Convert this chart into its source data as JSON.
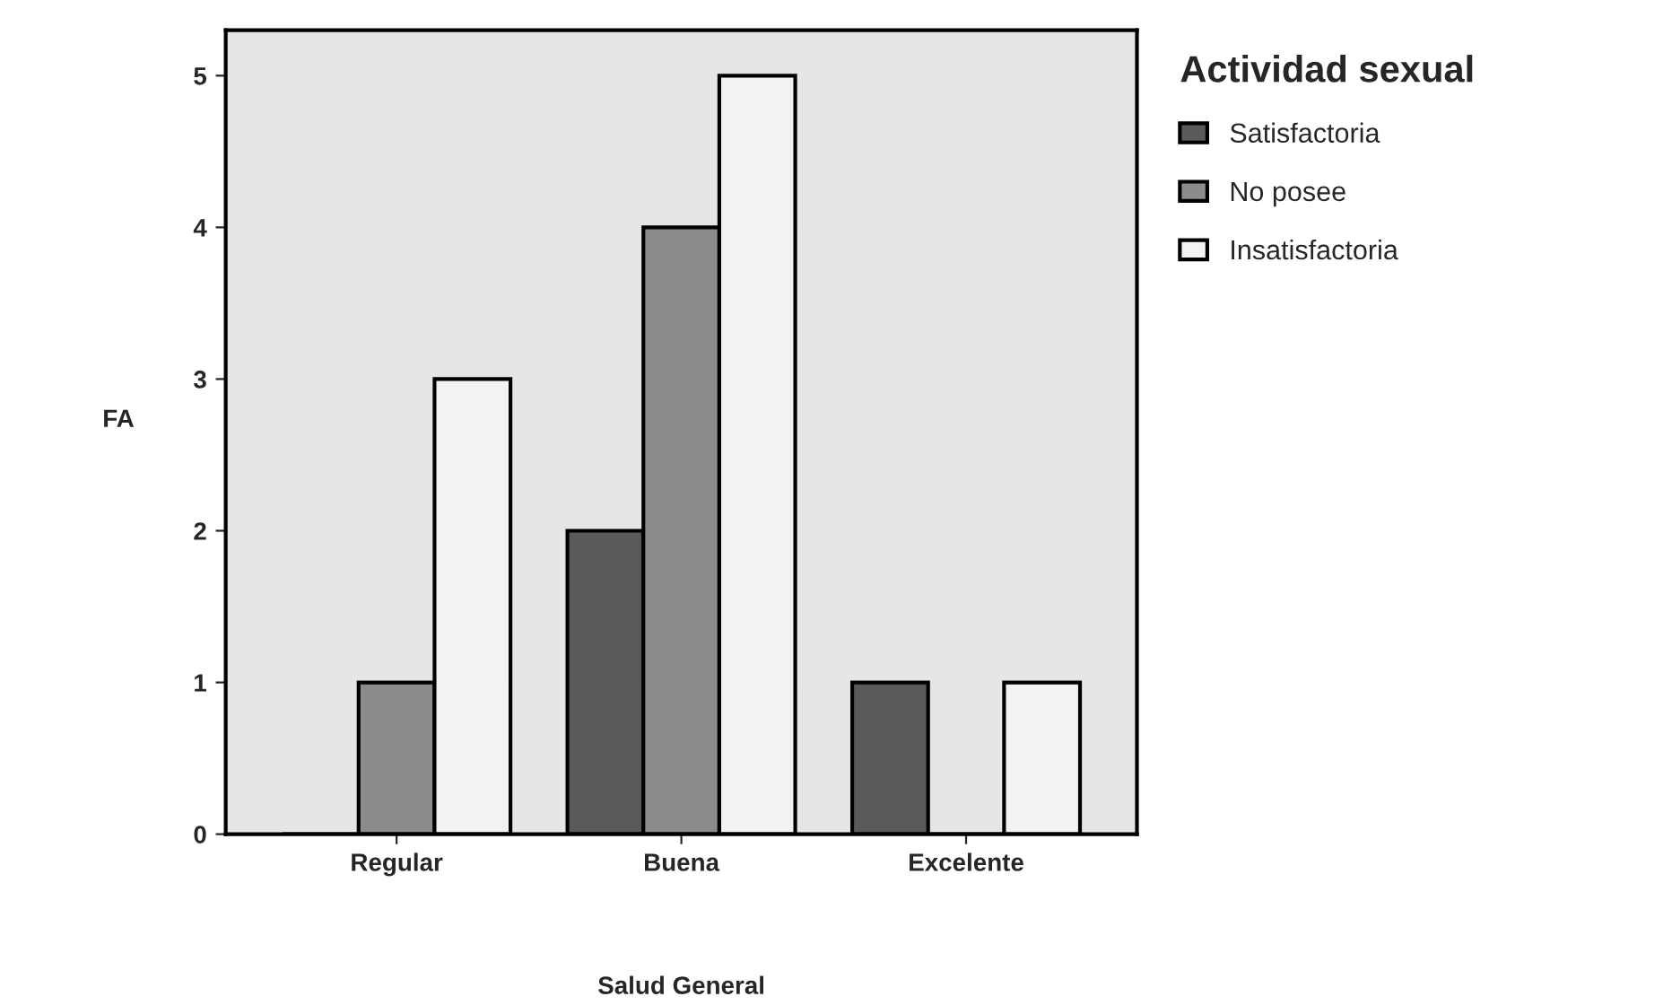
{
  "chart_data": {
    "type": "bar",
    "xlabel": "Salud General",
    "ylabel": "FA",
    "legend_title": "Actividad sexual",
    "categories": [
      "Regular",
      "Buena",
      "Excelente"
    ],
    "series": [
      {
        "name": "Satisfactoria",
        "color": "#5a5a5a",
        "values": [
          0,
          2,
          1
        ]
      },
      {
        "name": "No posee",
        "color": "#8c8c8c",
        "values": [
          1,
          4,
          0
        ]
      },
      {
        "name": "Insatisfactoria",
        "color": "#f2f2f2",
        "values": [
          3,
          5,
          1
        ]
      }
    ],
    "ylim": [
      0,
      5.3
    ],
    "yticks": [
      0,
      1,
      2,
      3,
      4,
      5
    ],
    "grid": false,
    "legend": "top right"
  }
}
